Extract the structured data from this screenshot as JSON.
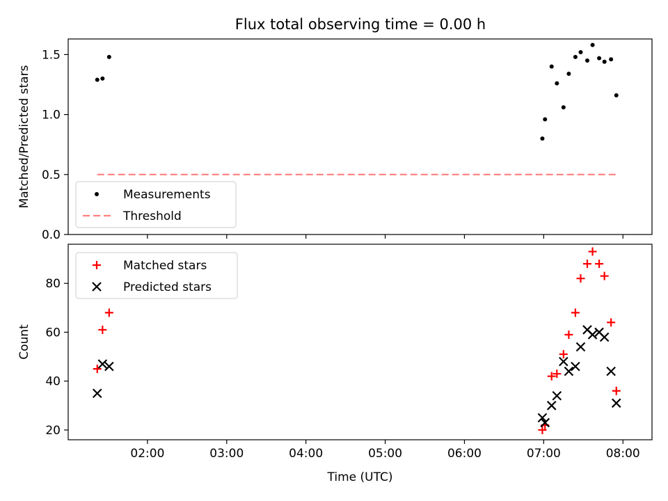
{
  "title": "Flux total observing time = 0.00 h",
  "chart_data": [
    {
      "type": "scatter",
      "ylabel": "Matched/Predicted stars",
      "xlim": [
        "01:00",
        "08:22"
      ],
      "ylim": [
        0.0,
        1.63
      ],
      "yticks": [
        "0.0",
        "0.5",
        "1.0",
        "1.5"
      ],
      "xticks": [
        "02:00",
        "03:00",
        "04:00",
        "05:00",
        "06:00",
        "07:00",
        "08:00"
      ],
      "show_x_tick_labels": false,
      "grid": false,
      "legend_position": "lower-left",
      "series": [
        {
          "name": "Measurements",
          "marker": "dot",
          "color": "#000000",
          "x": [
            "01:22",
            "01:26",
            "01:31",
            "06:59",
            "07:01",
            "07:06",
            "07:10",
            "07:15",
            "07:19",
            "07:24",
            "07:28",
            "07:33",
            "07:37",
            "07:42",
            "07:46",
            "07:51",
            "07:55"
          ],
          "y": [
            1.29,
            1.3,
            1.48,
            0.8,
            0.96,
            1.4,
            1.26,
            1.06,
            1.34,
            1.48,
            1.52,
            1.45,
            1.58,
            1.47,
            1.44,
            1.46,
            1.16
          ]
        },
        {
          "name": "Threshold",
          "marker": "dashed-line",
          "color": "#ff7f7f",
          "x": [
            "01:22",
            "07:55"
          ],
          "y": [
            0.5,
            0.5
          ]
        }
      ]
    },
    {
      "type": "scatter",
      "ylabel": "Count",
      "xlabel": "Time (UTC)",
      "xlim": [
        "01:00",
        "08:22"
      ],
      "ylim": [
        16,
        96
      ],
      "yticks": [
        "20",
        "40",
        "60",
        "80"
      ],
      "xticks": [
        "02:00",
        "03:00",
        "04:00",
        "05:00",
        "06:00",
        "07:00",
        "08:00"
      ],
      "show_x_tick_labels": true,
      "grid": false,
      "legend_position": "upper-left",
      "series": [
        {
          "name": "Matched stars",
          "marker": "plus",
          "color": "#ff0000",
          "x": [
            "01:22",
            "01:26",
            "01:31",
            "06:59",
            "07:01",
            "07:06",
            "07:10",
            "07:15",
            "07:19",
            "07:24",
            "07:28",
            "07:33",
            "07:37",
            "07:42",
            "07:46",
            "07:51",
            "07:55"
          ],
          "y": [
            45,
            61,
            68,
            20,
            22,
            42,
            43,
            51,
            59,
            68,
            82,
            88,
            93,
            88,
            83,
            64,
            36
          ]
        },
        {
          "name": "Predicted stars",
          "marker": "x",
          "color": "#000000",
          "x": [
            "01:22",
            "01:26",
            "01:31",
            "06:59",
            "07:01",
            "07:06",
            "07:10",
            "07:15",
            "07:19",
            "07:24",
            "07:28",
            "07:33",
            "07:37",
            "07:42",
            "07:46",
            "07:51",
            "07:55"
          ],
          "y": [
            35,
            47,
            46,
            25,
            23,
            30,
            34,
            48,
            44,
            46,
            54,
            61,
            59,
            60,
            58,
            44,
            31
          ]
        }
      ]
    }
  ]
}
